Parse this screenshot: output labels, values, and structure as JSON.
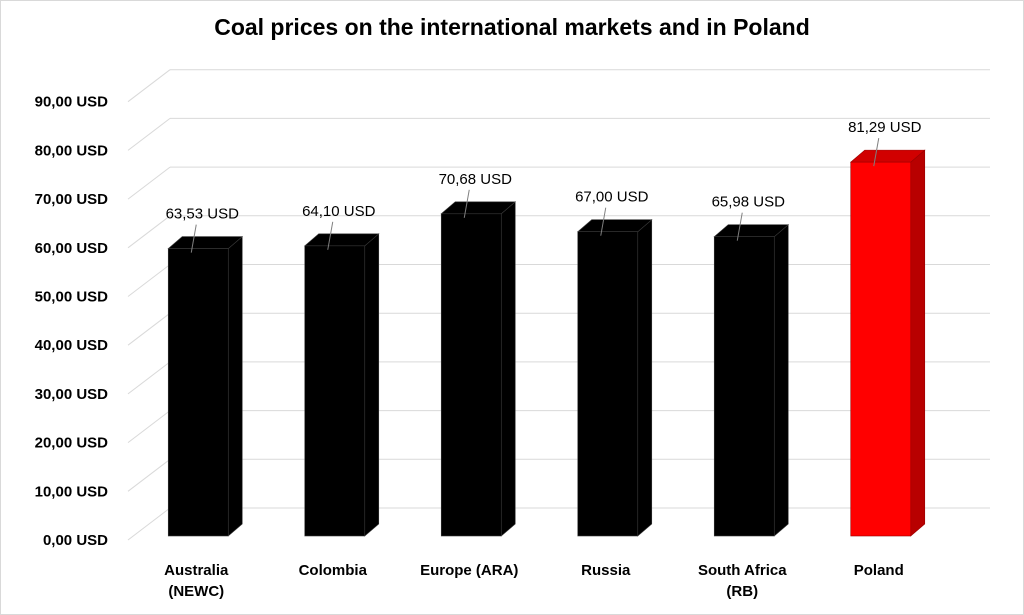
{
  "chart_data": {
    "type": "bar",
    "title": "Coal prices on the international markets and in Poland",
    "categories": [
      [
        "Australia",
        "(NEWC)"
      ],
      [
        "Colombia"
      ],
      [
        "Europe (ARA)"
      ],
      [
        "Russia"
      ],
      [
        "South Africa",
        "(RB)"
      ],
      [
        "Poland"
      ]
    ],
    "values": [
      63.53,
      64.1,
      70.68,
      67.0,
      65.98,
      81.29
    ],
    "data_labels": [
      "63,53 USD",
      "64,10 USD",
      "70,68 USD",
      "67,00 USD",
      "65,98 USD",
      "81,29 USD"
    ],
    "bar_colors": [
      "#000000",
      "#000000",
      "#000000",
      "#000000",
      "#000000",
      "#ff0000"
    ],
    "ylim": [
      0,
      90
    ],
    "yticks": [
      0,
      10,
      20,
      30,
      40,
      50,
      60,
      70,
      80,
      90
    ],
    "ytick_labels": [
      "0,00 USD",
      "10,00 USD",
      "20,00 USD",
      "30,00 USD",
      "40,00 USD",
      "50,00 USD",
      "60,00 USD",
      "70,00 USD",
      "80,00 USD",
      "90,00 USD"
    ],
    "xlabel": "",
    "ylabel": "",
    "grid": true,
    "legend": "none",
    "style": "3d-columns"
  }
}
